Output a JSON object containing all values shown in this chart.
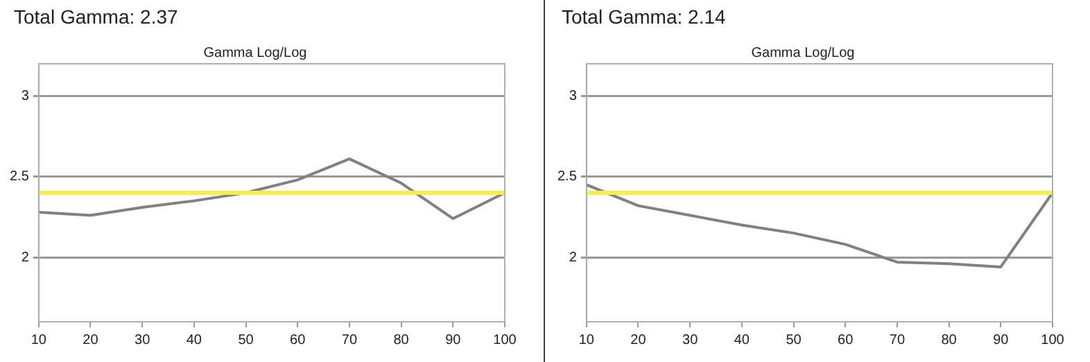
{
  "chart_data": [
    {
      "type": "line",
      "title": "Total Gamma: 2.37",
      "subtitle": "Gamma Log/Log",
      "x": [
        10,
        20,
        30,
        40,
        50,
        60,
        70,
        80,
        90,
        100
      ],
      "series": [
        {
          "color": "#808080",
          "values": [
            2.28,
            2.26,
            2.31,
            2.35,
            2.4,
            2.48,
            2.61,
            2.46,
            2.24,
            2.4
          ]
        }
      ],
      "xlim": [
        10,
        100
      ],
      "xticks": [
        10,
        20,
        30,
        40,
        50,
        60,
        70,
        80,
        90,
        100
      ],
      "ylim": [
        1.6,
        3.2
      ],
      "yticks": [
        2,
        2.5,
        3
      ],
      "grid": "y",
      "ref_lines": [
        {
          "axis": "y",
          "value": 2.4,
          "color": "#f2ee4a"
        }
      ]
    },
    {
      "type": "line",
      "title": "Total Gamma: 2.14",
      "subtitle": "Gamma Log/Log",
      "x": [
        10,
        20,
        30,
        40,
        50,
        60,
        70,
        80,
        90,
        100
      ],
      "series": [
        {
          "color": "#808080",
          "values": [
            2.45,
            2.32,
            2.26,
            2.2,
            2.15,
            2.08,
            1.97,
            1.96,
            1.94,
            2.4
          ]
        }
      ],
      "xlim": [
        10,
        100
      ],
      "xticks": [
        10,
        20,
        30,
        40,
        50,
        60,
        70,
        80,
        90,
        100
      ],
      "ylim": [
        1.6,
        3.2
      ],
      "yticks": [
        2,
        2.5,
        3
      ],
      "grid": "y",
      "ref_lines": [
        {
          "axis": "y",
          "value": 2.4,
          "color": "#f2ee4a"
        }
      ]
    }
  ]
}
